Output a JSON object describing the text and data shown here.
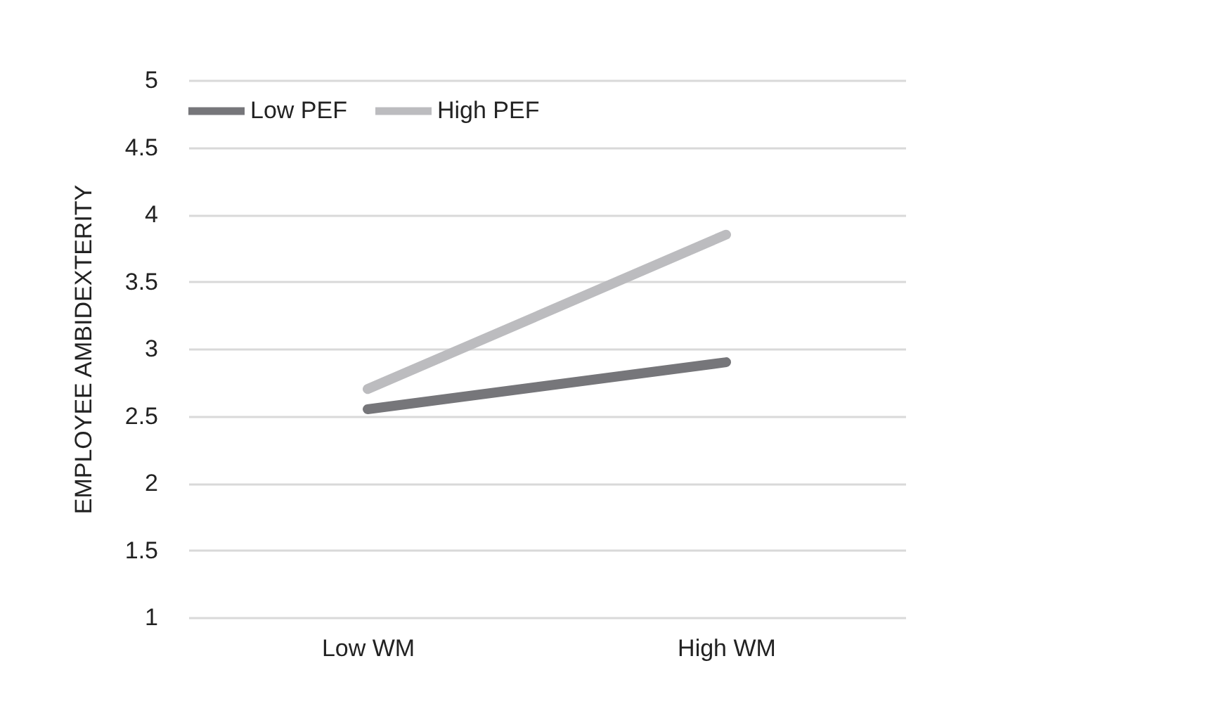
{
  "chart_data": {
    "type": "line",
    "ylabel": "EMPLOYEE AMBIDEXTERITY",
    "categories": [
      "Low WM",
      "High WM"
    ],
    "series": [
      {
        "name": "Low PEF",
        "color": "#76767a",
        "values": [
          2.55,
          2.9
        ]
      },
      {
        "name": "High PEF",
        "color": "#bcbcbf",
        "values": [
          2.7,
          3.85
        ]
      }
    ],
    "ylim": [
      1,
      5
    ],
    "yticks": [
      1,
      1.5,
      2,
      2.5,
      3,
      3.5,
      4,
      4.5,
      5
    ],
    "grid": "y",
    "legend": "top",
    "marker": "none",
    "line_style": "solid"
  }
}
